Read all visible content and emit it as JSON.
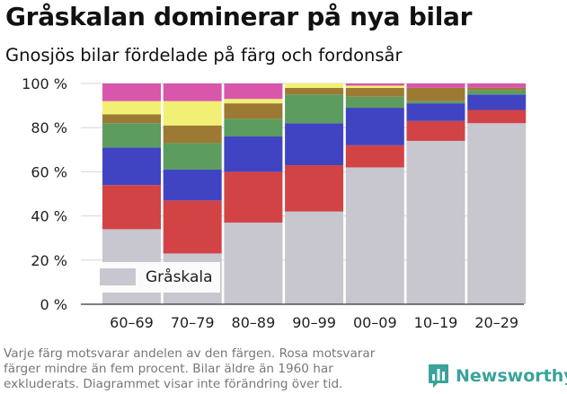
{
  "header": {
    "title": "Gråskalan dominerar på nya bilar",
    "subtitle": "Gnosjös bilar fördelade på färg och fordonsår"
  },
  "footer": {
    "note_lines": [
      "Varje färg motsvarar andelen av den färgen. Rosa motsvarar",
      "färger mindre än fem procent. Bilar äldre än 1960 har",
      "exkluderats. Diagrammet visar inte förändring över tid."
    ],
    "logo_text": "Newsworthy",
    "logo_icon": "chart-logo-icon"
  },
  "chart_data": {
    "type": "bar",
    "stacked": true,
    "categories": [
      "60–69",
      "70–79",
      "80–89",
      "90–99",
      "00–09",
      "10–19",
      "20–29"
    ],
    "series": [
      {
        "name": "Gråskala",
        "color": "#c8c6cf",
        "values": [
          34,
          23,
          37,
          42,
          62,
          74,
          82
        ]
      },
      {
        "name": "",
        "color": "#d24345",
        "values": [
          20,
          24,
          23,
          21,
          10,
          9,
          6
        ]
      },
      {
        "name": "",
        "color": "#4044c2",
        "values": [
          17,
          14,
          16,
          19,
          17,
          8,
          7
        ]
      },
      {
        "name": "",
        "color": "#5c9c5e",
        "values": [
          11,
          12,
          8,
          13,
          5,
          1,
          2
        ]
      },
      {
        "name": "",
        "color": "#9c7a33",
        "values": [
          4,
          8,
          7,
          3,
          4,
          6,
          1
        ]
      },
      {
        "name": "",
        "color": "#f2f074",
        "values": [
          6,
          11,
          2,
          2,
          1,
          0,
          0
        ]
      },
      {
        "name": "",
        "color": "#d857aa",
        "values": [
          8,
          8,
          7,
          0,
          1,
          2,
          2
        ]
      }
    ],
    "ylim": [
      0,
      100
    ],
    "yticks": [
      {
        "value": 0,
        "label": "0 %"
      },
      {
        "value": 20,
        "label": "20 %"
      },
      {
        "value": 40,
        "label": "40 %"
      },
      {
        "value": 60,
        "label": "60 %"
      },
      {
        "value": 80,
        "label": "80 %"
      },
      {
        "value": 100,
        "label": "100 %"
      }
    ],
    "grid": true,
    "legend": {
      "position": "bottom-left",
      "entries": [
        "Gråskala"
      ]
    }
  }
}
